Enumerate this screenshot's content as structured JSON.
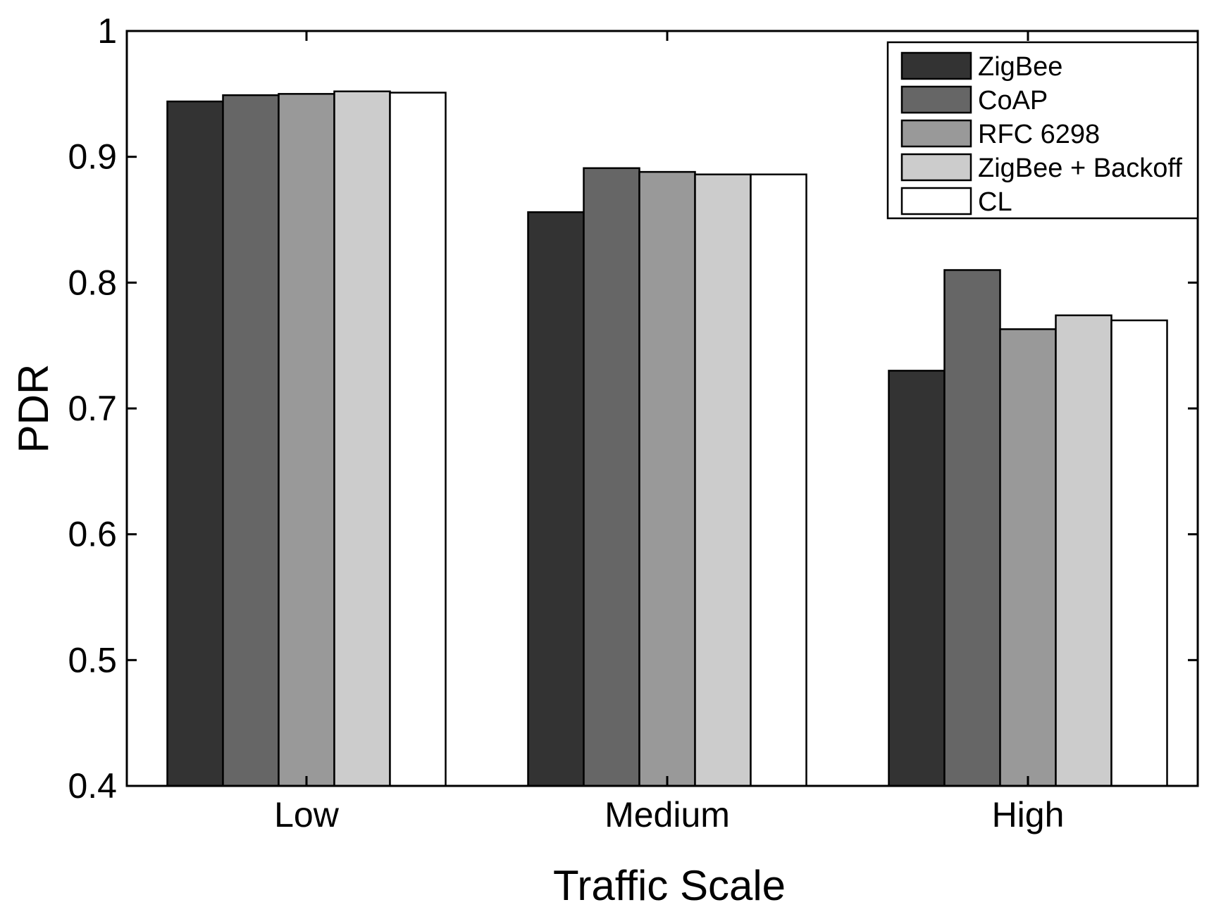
{
  "chart_data": {
    "type": "bar",
    "title": "",
    "xlabel": "Traffic Scale",
    "ylabel": "PDR",
    "categories": [
      "Low",
      "Medium",
      "High"
    ],
    "ylim": [
      0.4,
      1
    ],
    "yticks": [
      0.4,
      0.5,
      0.6,
      0.7,
      0.8,
      0.9,
      1
    ],
    "ytick_labels": [
      "0.4",
      "0.5",
      "0.6",
      "0.7",
      "0.8",
      "0.9",
      "1"
    ],
    "grid": false,
    "legend_position": "top-right",
    "series": [
      {
        "name": "ZigBee",
        "color": "#333333",
        "values": [
          0.944,
          0.856,
          0.73
        ]
      },
      {
        "name": "CoAP",
        "color": "#666666",
        "values": [
          0.949,
          0.891,
          0.81
        ]
      },
      {
        "name": "RFC 6298",
        "color": "#999999",
        "values": [
          0.95,
          0.888,
          0.763
        ]
      },
      {
        "name": "ZigBee + Backoff",
        "color": "#cccccc",
        "values": [
          0.952,
          0.886,
          0.774
        ]
      },
      {
        "name": "CL",
        "color": "#ffffff",
        "values": [
          0.951,
          0.886,
          0.77
        ]
      }
    ]
  }
}
